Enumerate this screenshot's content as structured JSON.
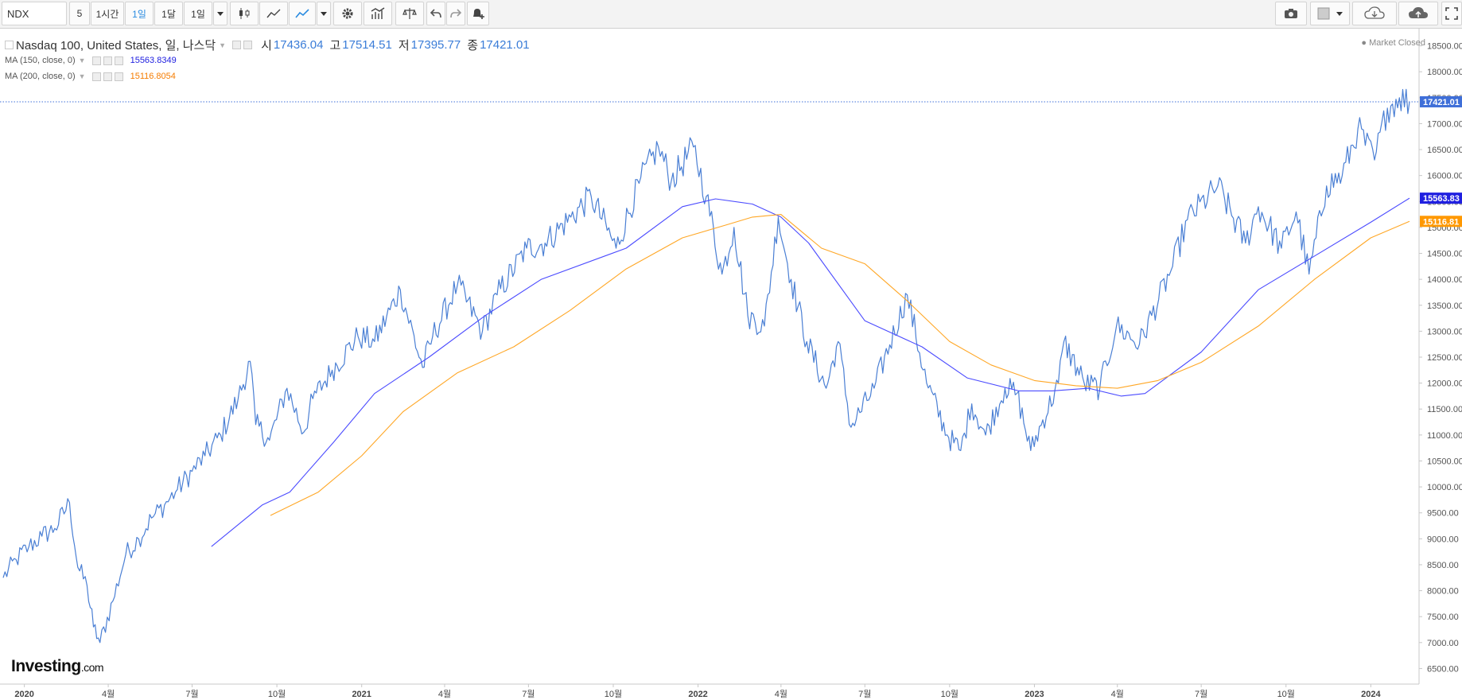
{
  "toolbar": {
    "symbol": "NDX",
    "intervals": [
      "5",
      "1시간",
      "1일",
      "1달",
      "1일"
    ],
    "active_interval": "1일",
    "icons": [
      "candlestick-icon",
      "area-chart-icon",
      "line-chart-icon",
      "dropdown-icon",
      "settings-icon",
      "indicators-icon",
      "compare-icon",
      "undo-icon",
      "redo-icon",
      "alert-icon",
      "camera-icon",
      "color-square-icon",
      "dropdown-icon",
      "cloud-download-icon",
      "cloud-upload-icon",
      "fullscreen-icon"
    ]
  },
  "legend": {
    "title": "Nasdaq 100, United States, 일, 나스닥",
    "open_label": "시",
    "open": "17436.04",
    "high_label": "고",
    "high": "17514.51",
    "low_label": "저",
    "low": "17395.77",
    "close_label": "종",
    "close": "17421.01",
    "ma150_label": "MA (150, close, 0)",
    "ma150_value": "15563.8349",
    "ma200_label": "MA (200, close, 0)",
    "ma200_value": "15116.8054"
  },
  "status": "● Market Closed",
  "logo": {
    "brand": "Investing",
    "suffix": ".com"
  },
  "colors": {
    "price": "#4a7fd4",
    "ma150": "#4b4bff",
    "ma200": "#ffa726",
    "last_price_badge": "#3f6fd8",
    "ma150_badge": "#2020e0",
    "ma200_badge": "#ff9800"
  },
  "chart_data": {
    "type": "line",
    "ylim": [
      6200,
      18800
    ],
    "yticks": [
      6500,
      7000,
      7500,
      8000,
      8500,
      9000,
      9500,
      10000,
      10500,
      11000,
      11500,
      12000,
      12500,
      13000,
      13500,
      14000,
      14500,
      15000,
      15500,
      16000,
      16500,
      17000,
      17500,
      18000,
      18500
    ],
    "ytick_labels": [
      "6500.00",
      "7000.00",
      "7500.00",
      "8000.00",
      "8500.00",
      "9000.00",
      "9500.00",
      "10000.00",
      "10500.00",
      "11000.00",
      "11500.00",
      "12000.00",
      "12500.00",
      "13000.00",
      "13500.00",
      "14000.00",
      "14500.00",
      "15000.00",
      "15500.00",
      "16000.00",
      "16500.00",
      "17000.00",
      "17500.00",
      "18000.00",
      "18500.00"
    ],
    "x_range": [
      "2019-12-09",
      "2024-02-12"
    ],
    "xticks": [
      {
        "date": "2020-01-01",
        "label": "2020",
        "bold": true
      },
      {
        "date": "2020-04-01",
        "label": "4월"
      },
      {
        "date": "2020-07-01",
        "label": "7월"
      },
      {
        "date": "2020-10-01",
        "label": "10월"
      },
      {
        "date": "2021-01-01",
        "label": "2021",
        "bold": true
      },
      {
        "date": "2021-04-01",
        "label": "4월"
      },
      {
        "date": "2021-07-01",
        "label": "7월"
      },
      {
        "date": "2021-10-01",
        "label": "10월"
      },
      {
        "date": "2022-01-01",
        "label": "2022",
        "bold": true
      },
      {
        "date": "2022-04-01",
        "label": "4월"
      },
      {
        "date": "2022-07-01",
        "label": "7월"
      },
      {
        "date": "2022-10-01",
        "label": "10월"
      },
      {
        "date": "2023-01-01",
        "label": "2023",
        "bold": true
      },
      {
        "date": "2023-04-01",
        "label": "4월"
      },
      {
        "date": "2023-07-01",
        "label": "7월"
      },
      {
        "date": "2023-10-01",
        "label": "10월"
      },
      {
        "date": "2024-01-01",
        "label": "2024",
        "bold": true
      }
    ],
    "series": [
      {
        "key": "price",
        "points": [
          [
            "2019-12-09",
            8250
          ],
          [
            "2019-12-23",
            8600
          ],
          [
            "2020-01-06",
            8850
          ],
          [
            "2020-01-20",
            9050
          ],
          [
            "2020-02-03",
            9200
          ],
          [
            "2020-02-19",
            9700
          ],
          [
            "2020-02-28",
            8450
          ],
          [
            "2020-03-09",
            8100
          ],
          [
            "2020-03-16",
            7300
          ],
          [
            "2020-03-23",
            7000
          ],
          [
            "2020-04-06",
            7800
          ],
          [
            "2020-04-20",
            8700
          ],
          [
            "2020-05-04",
            9000
          ],
          [
            "2020-05-18",
            9400
          ],
          [
            "2020-06-01",
            9650
          ],
          [
            "2020-06-15",
            9950
          ],
          [
            "2020-07-01",
            10300
          ],
          [
            "2020-07-15",
            10600
          ],
          [
            "2020-08-01",
            11000
          ],
          [
            "2020-08-20",
            11700
          ],
          [
            "2020-09-02",
            12420
          ],
          [
            "2020-09-08",
            11200
          ],
          [
            "2020-09-23",
            10900
          ],
          [
            "2020-10-12",
            11900
          ],
          [
            "2020-10-30",
            11050
          ],
          [
            "2020-11-09",
            11700
          ],
          [
            "2020-11-30",
            12250
          ],
          [
            "2020-12-28",
            12900
          ],
          [
            "2021-01-15",
            12800
          ],
          [
            "2021-02-12",
            13800
          ],
          [
            "2021-03-08",
            12300
          ],
          [
            "2021-03-19",
            12900
          ],
          [
            "2021-04-15",
            13900
          ],
          [
            "2021-05-12",
            13000
          ],
          [
            "2021-05-28",
            13700
          ],
          [
            "2021-06-29",
            14600
          ],
          [
            "2021-07-19",
            14700
          ],
          [
            "2021-08-16",
            15200
          ],
          [
            "2021-09-07",
            15600
          ],
          [
            "2021-10-04",
            14600
          ],
          [
            "2021-10-29",
            15850
          ],
          [
            "2021-11-19",
            16550
          ],
          [
            "2021-12-03",
            15900
          ],
          [
            "2021-12-27",
            16550
          ],
          [
            "2022-01-10",
            15600
          ],
          [
            "2022-01-27",
            14100
          ],
          [
            "2022-02-09",
            15000
          ],
          [
            "2022-02-24",
            13300
          ],
          [
            "2022-03-14",
            13100
          ],
          [
            "2022-03-29",
            15200
          ],
          [
            "2022-04-12",
            14000
          ],
          [
            "2022-04-29",
            12800
          ],
          [
            "2022-05-20",
            11900
          ],
          [
            "2022-06-02",
            12800
          ],
          [
            "2022-06-16",
            11150
          ],
          [
            "2022-07-11",
            11900
          ],
          [
            "2022-08-16",
            13700
          ],
          [
            "2022-09-06",
            12000
          ],
          [
            "2022-09-30",
            10950
          ],
          [
            "2022-10-13",
            10700
          ],
          [
            "2022-10-25",
            11600
          ],
          [
            "2022-11-09",
            11000
          ],
          [
            "2022-11-30",
            11900
          ],
          [
            "2022-12-13",
            11800
          ],
          [
            "2022-12-28",
            10700
          ],
          [
            "2023-01-27",
            12000
          ],
          [
            "2023-02-02",
            12800
          ],
          [
            "2023-02-24",
            12000
          ],
          [
            "2023-03-13",
            11900
          ],
          [
            "2023-03-31",
            13100
          ],
          [
            "2023-04-25",
            12750
          ],
          [
            "2023-05-31",
            14250
          ],
          [
            "2023-06-16",
            15150
          ],
          [
            "2023-07-19",
            15800
          ],
          [
            "2023-08-18",
            14700
          ],
          [
            "2023-09-01",
            15400
          ],
          [
            "2023-09-26",
            14600
          ],
          [
            "2023-10-12",
            15300
          ],
          [
            "2023-10-26",
            14100
          ],
          [
            "2023-11-14",
            15800
          ],
          [
            "2023-12-01",
            16000
          ],
          [
            "2023-12-18",
            16900
          ],
          [
            "2024-01-05",
            16300
          ],
          [
            "2024-01-19",
            17300
          ],
          [
            "2024-02-01",
            17500
          ],
          [
            "2024-02-12",
            17421
          ]
        ]
      },
      {
        "key": "ma150",
        "name": "MA (150, close, 0)",
        "points": [
          [
            "2020-07-22",
            8850
          ],
          [
            "2020-09-15",
            9650
          ],
          [
            "2020-10-15",
            9900
          ],
          [
            "2020-12-01",
            10850
          ],
          [
            "2021-01-15",
            11800
          ],
          [
            "2021-03-15",
            12500
          ],
          [
            "2021-05-15",
            13300
          ],
          [
            "2021-07-15",
            14000
          ],
          [
            "2021-10-15",
            14600
          ],
          [
            "2021-12-15",
            15400
          ],
          [
            "2022-01-20",
            15550
          ],
          [
            "2022-03-01",
            15450
          ],
          [
            "2022-04-01",
            15200
          ],
          [
            "2022-05-01",
            14700
          ],
          [
            "2022-07-01",
            13200
          ],
          [
            "2022-09-01",
            12700
          ],
          [
            "2022-10-20",
            12100
          ],
          [
            "2022-12-15",
            11850
          ],
          [
            "2023-01-20",
            11850
          ],
          [
            "2023-03-01",
            11900
          ],
          [
            "2023-04-05",
            11750
          ],
          [
            "2023-05-01",
            11800
          ],
          [
            "2023-07-01",
            12600
          ],
          [
            "2023-09-01",
            13800
          ],
          [
            "2023-11-01",
            14450
          ],
          [
            "2024-01-01",
            15100
          ],
          [
            "2024-02-12",
            15563.83
          ]
        ]
      },
      {
        "key": "ma200",
        "name": "MA (200, close, 0)",
        "points": [
          [
            "2020-09-24",
            9450
          ],
          [
            "2020-11-15",
            9900
          ],
          [
            "2021-01-01",
            10600
          ],
          [
            "2021-02-15",
            11450
          ],
          [
            "2021-04-15",
            12200
          ],
          [
            "2021-06-15",
            12700
          ],
          [
            "2021-08-15",
            13400
          ],
          [
            "2021-10-15",
            14200
          ],
          [
            "2021-12-15",
            14800
          ],
          [
            "2022-02-01",
            15050
          ],
          [
            "2022-03-01",
            15200
          ],
          [
            "2022-04-01",
            15250
          ],
          [
            "2022-05-15",
            14600
          ],
          [
            "2022-07-01",
            14300
          ],
          [
            "2022-08-15",
            13600
          ],
          [
            "2022-10-01",
            12800
          ],
          [
            "2022-11-15",
            12350
          ],
          [
            "2023-01-01",
            12050
          ],
          [
            "2023-02-15",
            11950
          ],
          [
            "2023-04-01",
            11900
          ],
          [
            "2023-05-15",
            12050
          ],
          [
            "2023-07-01",
            12400
          ],
          [
            "2023-09-01",
            13100
          ],
          [
            "2023-11-01",
            14000
          ],
          [
            "2024-01-01",
            14800
          ],
          [
            "2024-02-12",
            15116.81
          ]
        ]
      }
    ],
    "last_values": {
      "price": "17421.01",
      "ma150": "15563.83",
      "ma200": "15116.81"
    }
  }
}
